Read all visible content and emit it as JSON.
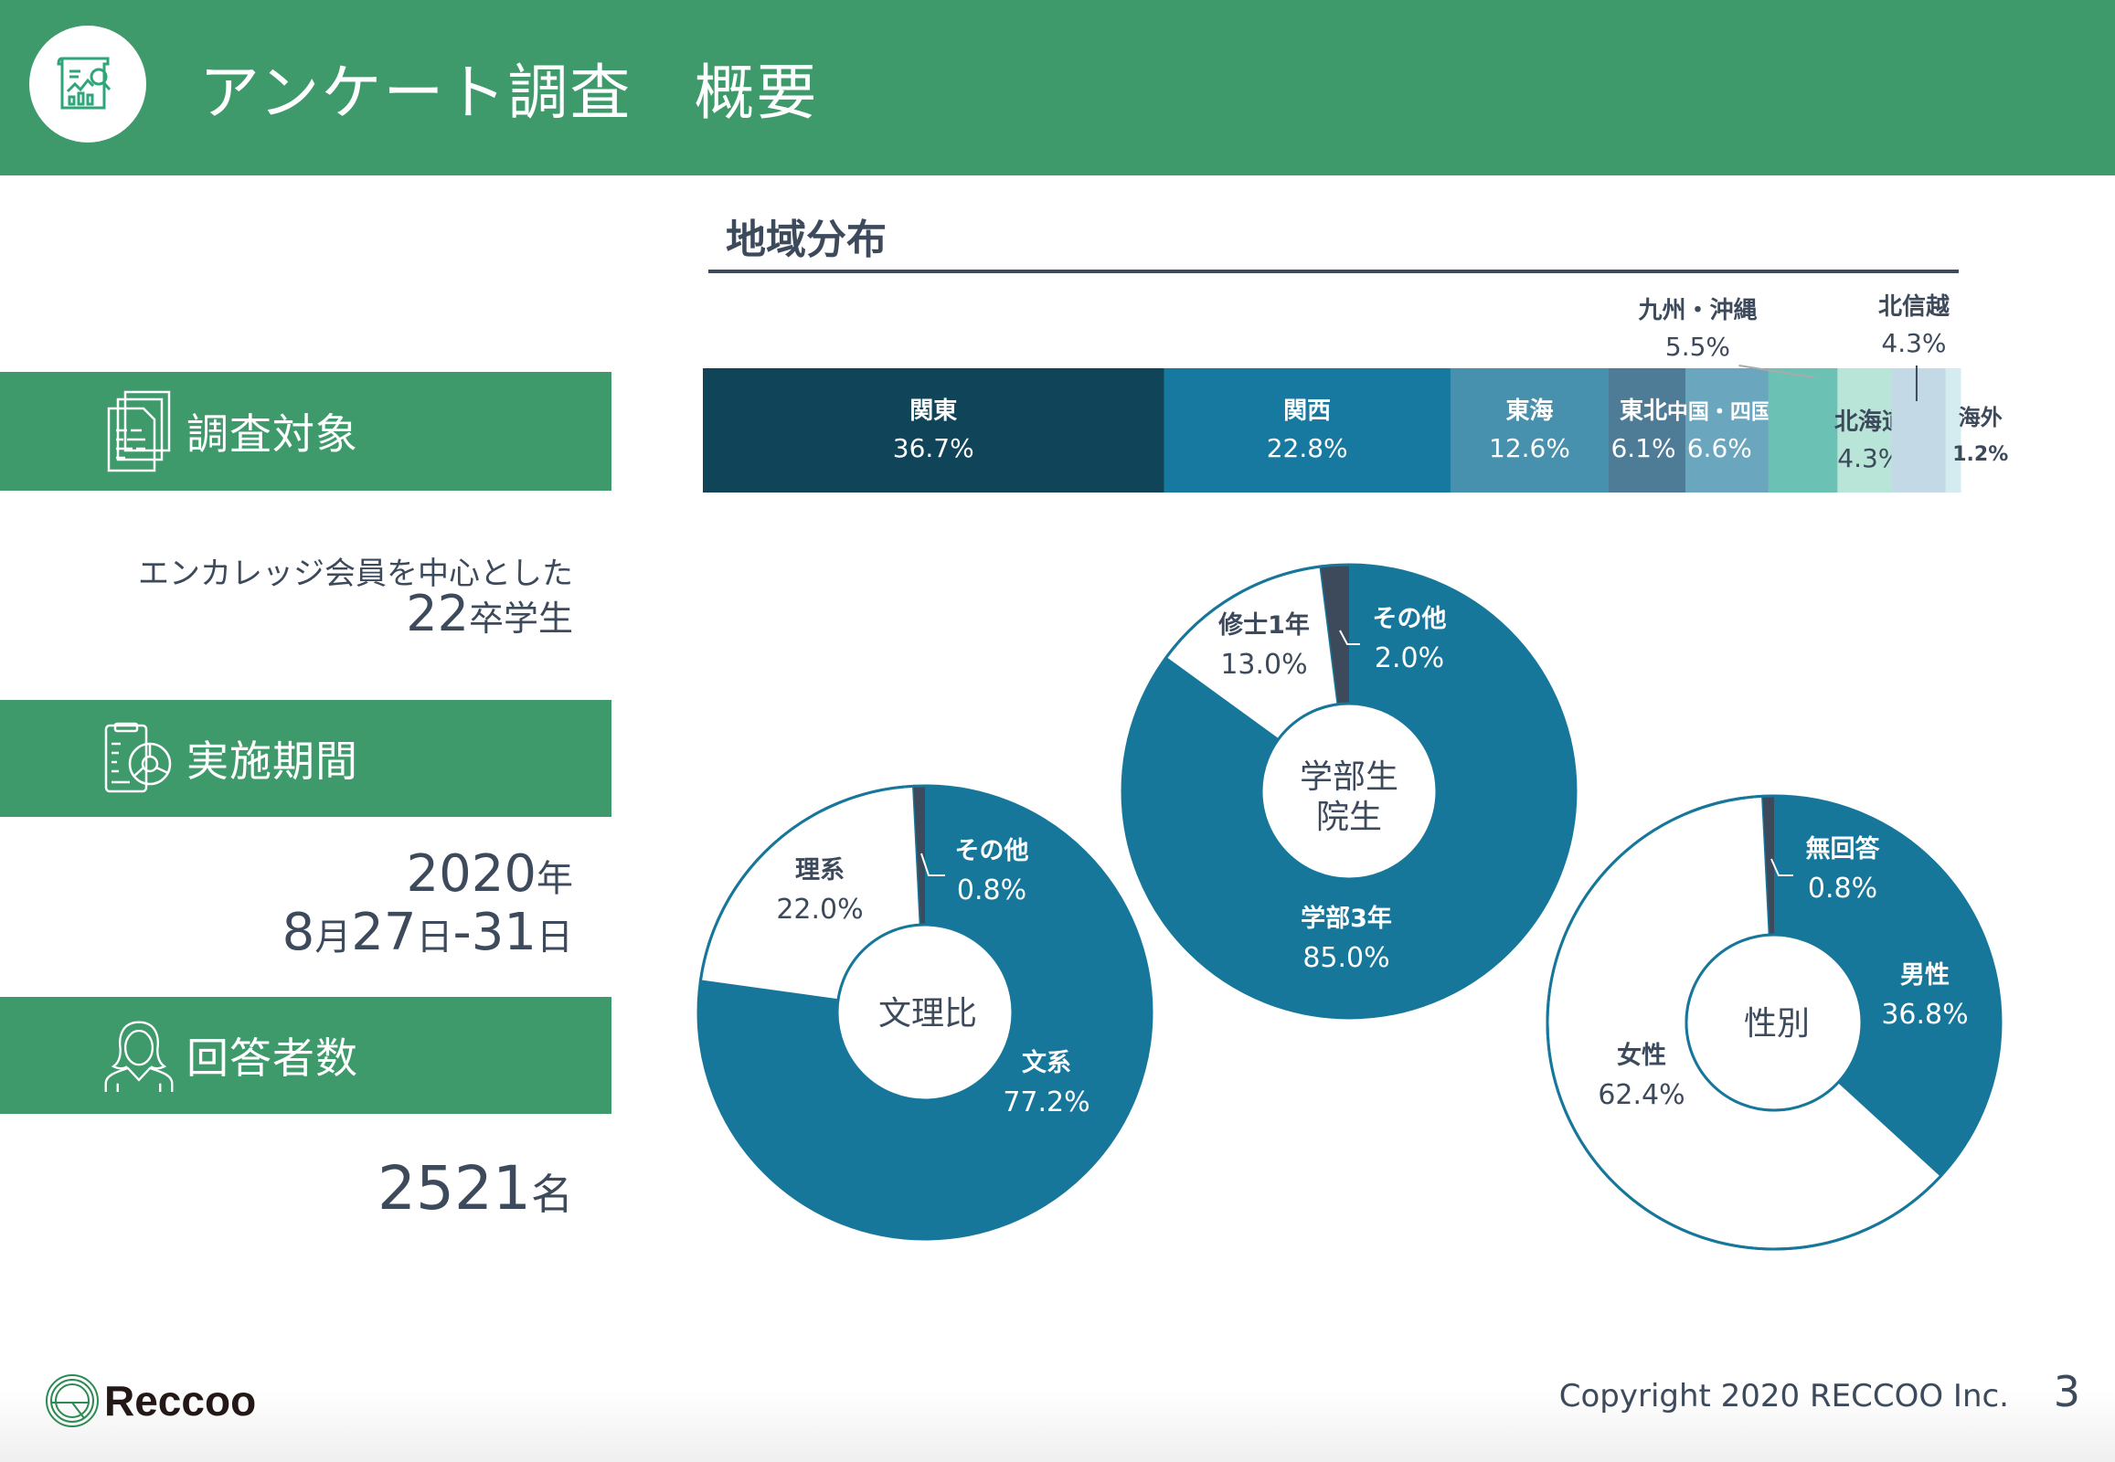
{
  "header": {
    "title": "アンケート調査　概要",
    "icon": "survey-report-icon"
  },
  "sections": {
    "target": {
      "label": "調査対象",
      "icon": "documents-icon",
      "line1": "エンカレッジ会員を中心とした",
      "number": "22",
      "suffix": "卒学生"
    },
    "period": {
      "label": "実施期間",
      "icon": "clipboard-chart-icon",
      "year": "2020",
      "year_unit": "年",
      "month": "8",
      "month_unit": "月",
      "day_start": "27",
      "day_unit": "日",
      "separator": "-",
      "day_end": "31",
      "day_end_unit": "日"
    },
    "respondents": {
      "label": "回答者数",
      "icon": "person-icon",
      "value": "2521",
      "unit": "名"
    }
  },
  "footer": {
    "brand": "Reccoo",
    "copyright": "Copyright 2020 RECCOO Inc.",
    "page": "3"
  },
  "colors": {
    "header_green": "#3f9a6b",
    "text": "#3d4a5c",
    "donut_blue": "#17779b",
    "donut_other": "#3d4a5c"
  },
  "chart_data": [
    {
      "type": "bar",
      "stacked": true,
      "orientation": "horizontal",
      "title": "地域分布",
      "unit": "%",
      "categories": [
        "関東",
        "関西",
        "東海",
        "東北",
        "中国・四国",
        "九州・沖縄",
        "北海道",
        "北信越",
        "海外"
      ],
      "values": [
        36.7,
        22.8,
        12.6,
        6.1,
        6.6,
        5.5,
        4.3,
        4.3,
        1.2
      ],
      "value_labels": [
        "36.7%",
        "22.8%",
        "12.6%",
        "6.1%",
        "6.6%",
        "5.5%",
        "4.3%",
        "4.3%",
        "1.2%"
      ],
      "colors": [
        "#0f4459",
        "#17799f",
        "#4891ae",
        "#4e7b96",
        "#6aa6bd",
        "#6bc2b4",
        "#b9e5d9",
        "#c4d9e6",
        "#d4ecf0"
      ],
      "label_position": [
        "inside",
        "inside",
        "inside",
        "inside",
        "inside",
        "above",
        "inside",
        "above",
        "inside"
      ]
    },
    {
      "type": "pie",
      "donut": true,
      "center_label": "文理比",
      "categories": [
        "文系",
        "理系",
        "その他"
      ],
      "values": [
        77.2,
        22.0,
        0.8
      ],
      "value_labels": [
        "77.2%",
        "22.0%",
        "0.8%"
      ],
      "colors": [
        "#17779b",
        "#ffffff",
        "#3d4a5c"
      ]
    },
    {
      "type": "pie",
      "donut": true,
      "center_label": "学部生\n院生",
      "center_lines": [
        "学部生",
        "院生"
      ],
      "categories": [
        "学部3年",
        "修士1年",
        "その他"
      ],
      "values": [
        85.0,
        13.0,
        2.0
      ],
      "value_labels": [
        "85.0%",
        "13.0%",
        "2.0%"
      ],
      "colors": [
        "#17779b",
        "#ffffff",
        "#3d4a5c"
      ]
    },
    {
      "type": "pie",
      "donut": true,
      "center_label": "性別",
      "categories": [
        "男性",
        "女性",
        "無回答"
      ],
      "values": [
        36.8,
        62.4,
        0.8
      ],
      "value_labels": [
        "36.8%",
        "62.4%",
        "0.8%"
      ],
      "colors": [
        "#17779b",
        "#ffffff",
        "#3d4a5c"
      ]
    }
  ]
}
